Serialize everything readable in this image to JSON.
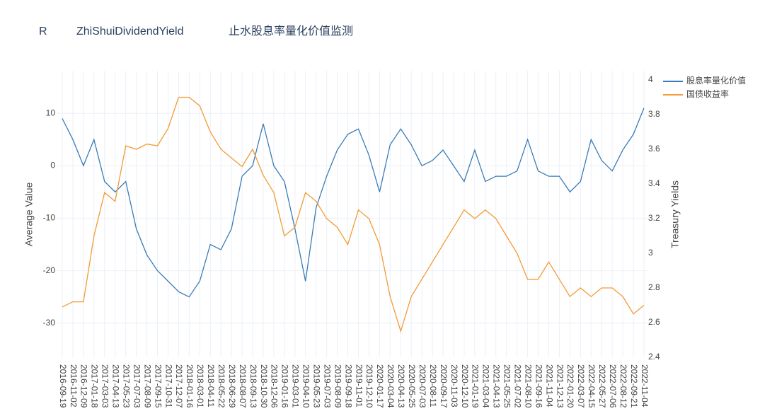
{
  "chart_data": {
    "type": "line",
    "title": [
      "R",
      "ZhiShuiDividendYield",
      "止水股息率量化价值监测"
    ],
    "y_label": "Average   Value",
    "y2_label": "Treasury   Yields",
    "x": [
      "2016-09-19",
      "2016-11-02",
      "2016-12-09",
      "2017-01-18",
      "2017-03-03",
      "2017-04-13",
      "2017-05-23",
      "2017-07-03",
      "2017-08-09",
      "2017-09-15",
      "2017-10-31",
      "2017-12-07",
      "2018-01-16",
      "2018-03-01",
      "2018-04-11",
      "2018-05-22",
      "2018-06-29",
      "2018-08-07",
      "2018-09-13",
      "2018-10-30",
      "2018-12-06",
      "2019-01-16",
      "2019-03-01",
      "2019-04-10",
      "2019-05-23",
      "2019-07-03",
      "2019-08-09",
      "2019-09-18",
      "2019-11-01",
      "2019-12-10",
      "2020-01-17",
      "2020-03-04",
      "2020-04-13",
      "2020-05-25",
      "2020-07-03",
      "2020-08-11",
      "2020-09-17",
      "2020-11-03",
      "2020-12-10",
      "2021-01-19",
      "2021-03-04",
      "2021-04-13",
      "2021-05-25",
      "2021-07-02",
      "2021-08-10",
      "2021-09-16",
      "2021-11-04",
      "2021-12-13",
      "2022-01-20",
      "2022-03-07",
      "2022-04-15",
      "2022-05-27",
      "2022-07-06",
      "2022-08-12",
      "2022-09-21",
      "2022-11-04"
    ],
    "series": [
      {
        "name": "股息率量化价值",
        "color": "#3a7bb8",
        "axis": "y",
        "values": [
          9,
          5,
          0,
          5,
          -3,
          -5,
          -3,
          -12,
          -17,
          -20,
          -22,
          -24,
          -25,
          -22,
          -15,
          -16,
          -12,
          -2,
          0,
          8,
          0,
          -3,
          -12,
          -22,
          -8,
          -2,
          3,
          6,
          7,
          2,
          -5,
          4,
          7,
          4,
          0,
          1,
          3,
          0,
          -3,
          3,
          -3,
          -2,
          -2,
          -1,
          5,
          -1,
          -2,
          -2,
          -5,
          -3,
          5,
          1,
          -1,
          3,
          6,
          11
        ]
      },
      {
        "name": "国债收益率",
        "color": "#f39a33",
        "axis": "y2",
        "values": [
          2.69,
          2.72,
          2.72,
          3.1,
          3.35,
          3.3,
          3.62,
          3.6,
          3.63,
          3.62,
          3.72,
          3.9,
          3.9,
          3.85,
          3.7,
          3.6,
          3.55,
          3.5,
          3.6,
          3.45,
          3.35,
          3.1,
          3.15,
          3.35,
          3.3,
          3.2,
          3.15,
          3.05,
          3.25,
          3.2,
          3.05,
          2.75,
          2.55,
          2.75,
          2.85,
          2.95,
          3.05,
          3.15,
          3.25,
          3.2,
          3.25,
          3.2,
          3.1,
          3.0,
          2.85,
          2.85,
          2.95,
          2.85,
          2.75,
          2.8,
          2.75,
          2.8,
          2.8,
          2.75,
          2.65,
          2.7
        ]
      }
    ],
    "ylim": [
      -36.5,
      18.1
    ],
    "yticks": [
      -30,
      -20,
      -10,
      0,
      10
    ],
    "y2lim": [
      2.4,
      4.053
    ],
    "y2ticks": [
      2.4,
      2.6,
      2.8,
      3,
      3.2,
      3.4,
      3.6,
      3.8,
      4
    ],
    "grid": true,
    "legend": "top-right"
  }
}
